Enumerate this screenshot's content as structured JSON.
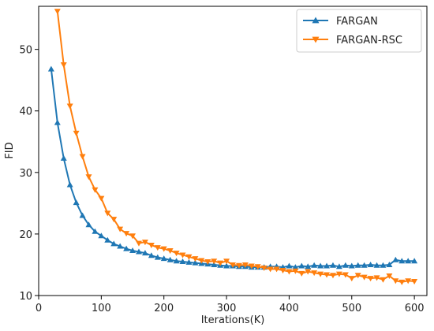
{
  "chart_data": {
    "type": "line",
    "title": "",
    "xlabel": "Iterations(K)",
    "ylabel": "FID",
    "xlim": [
      0,
      620
    ],
    "ylim": [
      10,
      57
    ],
    "xticks": [
      0,
      100,
      200,
      300,
      400,
      500,
      600
    ],
    "yticks": [
      10,
      20,
      30,
      40,
      50
    ],
    "grid": false,
    "legend_position": "top-right",
    "series": [
      {
        "name": "FARGAN",
        "color": "#1f77b4",
        "marker": "triangle-up",
        "x": [
          20,
          30,
          40,
          50,
          60,
          70,
          80,
          90,
          100,
          110,
          120,
          130,
          140,
          150,
          160,
          170,
          180,
          190,
          200,
          210,
          220,
          230,
          240,
          250,
          260,
          270,
          280,
          290,
          300,
          310,
          320,
          330,
          340,
          350,
          360,
          370,
          380,
          390,
          400,
          410,
          420,
          430,
          440,
          450,
          460,
          470,
          480,
          490,
          500,
          510,
          520,
          530,
          540,
          550,
          560,
          570,
          580,
          590,
          600
        ],
        "values": [
          46.8,
          38.1,
          32.3,
          28.0,
          25.1,
          23.0,
          21.5,
          20.4,
          19.7,
          19.0,
          18.4,
          18.0,
          17.6,
          17.3,
          17.1,
          16.9,
          16.5,
          16.2,
          16.0,
          15.8,
          15.6,
          15.5,
          15.4,
          15.3,
          15.2,
          15.1,
          15.0,
          14.9,
          14.8,
          14.8,
          14.7,
          14.7,
          14.6,
          14.6,
          14.6,
          14.7,
          14.7,
          14.6,
          14.8,
          14.6,
          14.8,
          14.7,
          14.9,
          14.8,
          14.8,
          14.9,
          14.7,
          14.9,
          14.8,
          14.9,
          14.9,
          15.0,
          14.9,
          14.9,
          15.0,
          15.8,
          15.6,
          15.6,
          15.6
        ]
      },
      {
        "name": "FARGAN-RSC",
        "color": "#ff7f0e",
        "marker": "triangle-down",
        "x": [
          30,
          40,
          50,
          60,
          70,
          80,
          90,
          100,
          110,
          120,
          130,
          140,
          150,
          160,
          170,
          180,
          190,
          200,
          210,
          220,
          230,
          240,
          250,
          260,
          270,
          280,
          290,
          300,
          310,
          320,
          330,
          340,
          350,
          360,
          370,
          380,
          390,
          400,
          410,
          420,
          430,
          440,
          450,
          460,
          470,
          480,
          490,
          500,
          510,
          520,
          530,
          540,
          550,
          560,
          570,
          580,
          590,
          600
        ],
        "values": [
          56.2,
          47.5,
          40.8,
          36.4,
          32.6,
          29.3,
          27.2,
          25.8,
          23.4,
          22.4,
          20.8,
          20.1,
          19.7,
          18.5,
          18.7,
          18.2,
          17.8,
          17.6,
          17.3,
          16.9,
          16.6,
          16.3,
          16.0,
          15.7,
          15.5,
          15.6,
          15.3,
          15.6,
          15.0,
          14.9,
          15.0,
          14.8,
          14.7,
          14.5,
          14.3,
          14.3,
          14.1,
          13.9,
          14.0,
          13.6,
          13.9,
          13.7,
          13.5,
          13.4,
          13.3,
          13.5,
          13.4,
          12.8,
          13.3,
          13.0,
          12.8,
          12.9,
          12.6,
          13.2,
          12.4,
          12.2,
          12.4,
          12.3
        ]
      }
    ]
  }
}
